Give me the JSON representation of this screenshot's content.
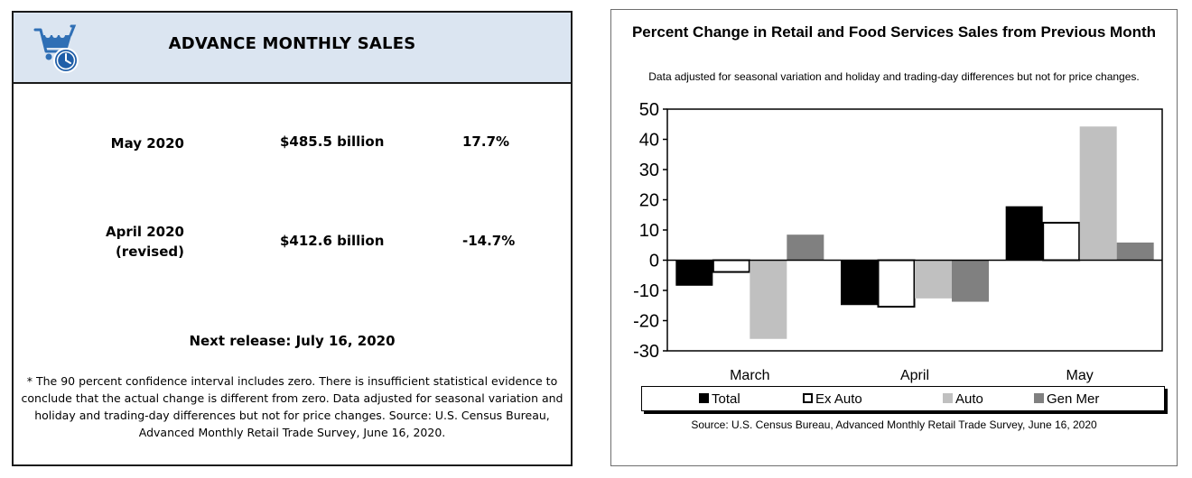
{
  "left": {
    "title": "ADVANCE MONTHLY SALES",
    "icon": "shopping-cart-clock-icon",
    "rows": [
      {
        "label": "May 2020",
        "amount": "$485.5 billion",
        "pct": "17.7%"
      },
      {
        "label": "April 2020\n(revised)",
        "amount": "$412.6 billion",
        "pct": "-14.7%"
      }
    ],
    "next_release": "Next release: July 16, 2020",
    "footnote": "* The 90 percent confidence interval includes zero. There is insufficient statistical evidence to conclude that the actual change is different from zero. Data adjusted for seasonal variation and holiday and trading-day differences but not for price changes. Source: U.S. Census Bureau, Advanced Monthly Retail Trade Survey, June 16, 2020."
  },
  "chart_data": {
    "type": "bar",
    "title": "Percent Change in Retail and Food Services Sales from Previous Month",
    "subtitle": "Data adjusted for seasonal variation and holiday and trading-day differences but not for price changes.",
    "categories": [
      "March",
      "April",
      "May"
    ],
    "series": [
      {
        "name": "Total",
        "values": [
          -8.3,
          -14.7,
          17.7
        ],
        "fill": "#000000",
        "stroke": "#000000"
      },
      {
        "name": "Ex Auto",
        "values": [
          -3.9,
          -15.4,
          12.4
        ],
        "fill": "#ffffff",
        "stroke": "#000000"
      },
      {
        "name": "Auto",
        "values": [
          -25.9,
          -12.5,
          44.1
        ],
        "fill": "#c0c0c0",
        "stroke": "#c0c0c0"
      },
      {
        "name": "Gen Mer",
        "values": [
          8.3,
          -13.6,
          5.7
        ],
        "fill": "#808080",
        "stroke": "#808080"
      }
    ],
    "ylim": [
      -30,
      50
    ],
    "yticks": [
      50,
      40,
      30,
      20,
      10,
      0,
      -10,
      -20,
      -30
    ],
    "grid": false,
    "legend_position": "bottom",
    "source": "Source: U.S. Census Bureau, Advanced Monthly Retail Trade Survey, June 16, 2020"
  }
}
